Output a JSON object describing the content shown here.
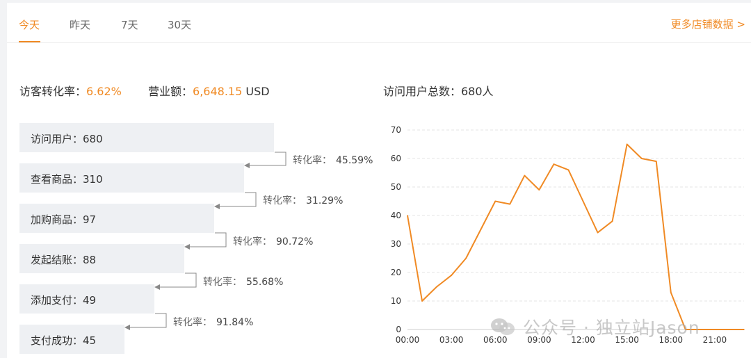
{
  "tabs": [
    {
      "label": "今天",
      "active": true
    },
    {
      "label": "昨天",
      "active": false
    },
    {
      "label": "7天",
      "active": false
    },
    {
      "label": "30天",
      "active": false
    }
  ],
  "more_link": "更多店铺数据 >",
  "summary": {
    "conversion_label": "访客转化率：",
    "conversion_value": "6.62%",
    "revenue_label": "营业额：",
    "revenue_value": "6,648.15",
    "revenue_unit": "USD",
    "visitors_total": "访问用户总数：680人"
  },
  "funnel": {
    "steps": [
      {
        "label": "访问用户：680",
        "value": 680
      },
      {
        "label": "查看商品：310",
        "value": 310
      },
      {
        "label": "加购商品：97",
        "value": 97
      },
      {
        "label": "发起结账：88",
        "value": 88
      },
      {
        "label": "添加支付：49",
        "value": 49
      },
      {
        "label": "支付成功：45",
        "value": 45
      }
    ],
    "rate_label": "转化率：",
    "rates": [
      "45.59%",
      "31.29%",
      "90.72%",
      "55.68%",
      "91.84%"
    ]
  },
  "chart_data": {
    "type": "line",
    "x_ticks": [
      "00:00",
      "03:00",
      "06:00",
      "09:00",
      "12:00",
      "15:00",
      "18:00",
      "21:00"
    ],
    "y_ticks": [
      "0",
      "10",
      "20",
      "30",
      "40",
      "50",
      "60",
      "70"
    ],
    "ylim": [
      0,
      70
    ],
    "xlim_hours": [
      0,
      23
    ],
    "grid": true,
    "series": [
      {
        "color": "#f08a24",
        "x_hours": [
          0,
          1,
          2,
          3,
          4,
          5,
          6,
          7,
          8,
          9,
          10,
          11,
          12,
          13,
          14,
          15,
          16,
          17,
          18,
          19,
          20,
          21,
          22,
          23
        ],
        "values": [
          40,
          10,
          15,
          19,
          25,
          35,
          45,
          44,
          54,
          49,
          58,
          56,
          45,
          34,
          38,
          65,
          60,
          59,
          13,
          0,
          0,
          0,
          0,
          0
        ]
      }
    ]
  },
  "watermark": "公众号 · 独立站Jason",
  "colors": {
    "accent": "#f08a24",
    "bar": "#eef0f3",
    "arrow": "#888888"
  }
}
